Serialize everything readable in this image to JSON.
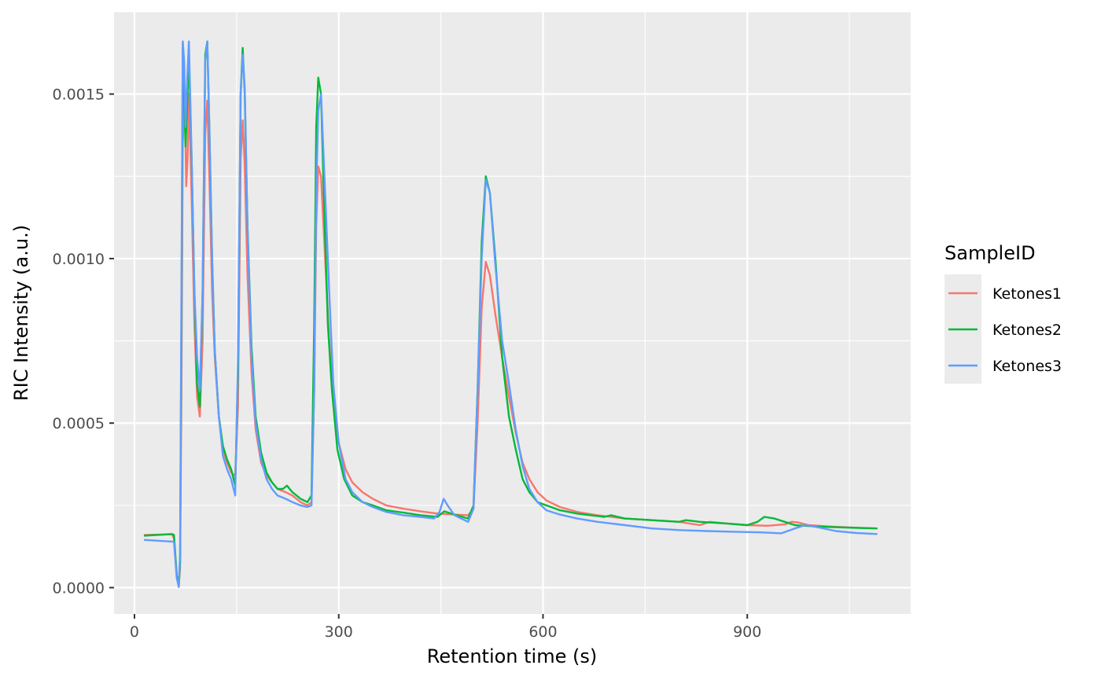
{
  "chart_data": {
    "type": "line",
    "title": "",
    "xlabel": "Retention time (s)",
    "ylabel": "RIC Intensity (a.u.)",
    "xlim": [
      -30,
      1140
    ],
    "ylim": [
      -8e-05,
      0.00175
    ],
    "x_ticks": [
      0,
      300,
      600,
      900
    ],
    "x_tick_labels": [
      "0",
      "300",
      "600",
      "900"
    ],
    "y_ticks": [
      0.0,
      0.0005,
      0.001,
      0.0015
    ],
    "y_tick_labels": [
      "0.0000",
      "0.0005",
      "0.0010",
      "0.0015"
    ],
    "grid": true,
    "legend": {
      "title": "SampleID",
      "position": "right"
    },
    "series": [
      {
        "name": "Ketones1",
        "color": "#F8766D",
        "points": [
          [
            15,
            0.00016
          ],
          [
            55,
            0.000162
          ],
          [
            58,
            0.00015
          ],
          [
            62,
            4e-05
          ],
          [
            65,
            5e-06
          ],
          [
            67,
            6e-05
          ],
          [
            69,
            0.0006
          ],
          [
            71,
            0.00135
          ],
          [
            74,
            0.0015
          ],
          [
            76,
            0.00122
          ],
          [
            78,
            0.0013
          ],
          [
            80,
            0.0015
          ],
          [
            84,
            0.00118
          ],
          [
            88,
            0.0008
          ],
          [
            92,
            0.00058
          ],
          [
            96,
            0.00052
          ],
          [
            100,
            0.00075
          ],
          [
            104,
            0.00138
          ],
          [
            107,
            0.00148
          ],
          [
            110,
            0.00125
          ],
          [
            114,
            0.0009
          ],
          [
            118,
            0.0007
          ],
          [
            124,
            0.00052
          ],
          [
            130,
            0.00042
          ],
          [
            136,
            0.00038
          ],
          [
            142,
            0.00035
          ],
          [
            148,
            0.00034
          ],
          [
            152,
            0.00055
          ],
          [
            156,
            0.0013
          ],
          [
            159,
            0.00142
          ],
          [
            162,
            0.00128
          ],
          [
            166,
            0.00095
          ],
          [
            172,
            0.00065
          ],
          [
            178,
            0.00048
          ],
          [
            186,
            0.00038
          ],
          [
            194,
            0.00034
          ],
          [
            202,
            0.00032
          ],
          [
            210,
            0.0003
          ],
          [
            222,
            0.00029
          ],
          [
            232,
            0.00028
          ],
          [
            244,
            0.00026
          ],
          [
            254,
            0.00025
          ],
          [
            260,
            0.00026
          ],
          [
            264,
            0.0006
          ],
          [
            267,
            0.0011
          ],
          [
            270,
            0.00128
          ],
          [
            274,
            0.00125
          ],
          [
            280,
            0.001
          ],
          [
            286,
            0.00075
          ],
          [
            292,
            0.00057
          ],
          [
            300,
            0.00044
          ],
          [
            310,
            0.00036
          ],
          [
            320,
            0.00032
          ],
          [
            335,
            0.00029
          ],
          [
            350,
            0.00027
          ],
          [
            370,
            0.00025
          ],
          [
            395,
            0.00024
          ],
          [
            420,
            0.000232
          ],
          [
            445,
            0.000225
          ],
          [
            470,
            0.000222
          ],
          [
            490,
            0.00022
          ],
          [
            498,
            0.00024
          ],
          [
            504,
            0.0005
          ],
          [
            510,
            0.00085
          ],
          [
            516,
            0.00099
          ],
          [
            522,
            0.00095
          ],
          [
            530,
            0.00083
          ],
          [
            540,
            0.0007
          ],
          [
            550,
            0.00058
          ],
          [
            560,
            0.00047
          ],
          [
            570,
            0.00038
          ],
          [
            580,
            0.00033
          ],
          [
            592,
            0.00029
          ],
          [
            605,
            0.000265
          ],
          [
            625,
            0.000245
          ],
          [
            650,
            0.00023
          ],
          [
            680,
            0.00022
          ],
          [
            720,
            0.00021
          ],
          [
            760,
            0.000205
          ],
          [
            800,
            0.0002
          ],
          [
            830,
            0.00019
          ],
          [
            845,
            0.0002
          ],
          [
            870,
            0.000195
          ],
          [
            900,
            0.00019
          ],
          [
            930,
            0.000188
          ],
          [
            955,
            0.000192
          ],
          [
            965,
            0.0002
          ],
          [
            975,
            0.000198
          ],
          [
            990,
            0.00019
          ],
          [
            1020,
            0.000186
          ],
          [
            1060,
            0.000182
          ],
          [
            1090,
            0.00018
          ]
        ]
      },
      {
        "name": "Ketones2",
        "color": "#00BA38",
        "points": [
          [
            15,
            0.000158
          ],
          [
            55,
            0.000163
          ],
          [
            58,
            0.00016
          ],
          [
            62,
            4e-05
          ],
          [
            65,
            3e-06
          ],
          [
            67,
            8e-05
          ],
          [
            69,
            0.0008
          ],
          [
            71,
            0.00164
          ],
          [
            73,
            0.0015
          ],
          [
            75,
            0.00134
          ],
          [
            77,
            0.00144
          ],
          [
            80,
            0.00162
          ],
          [
            84,
            0.0013
          ],
          [
            88,
            0.0009
          ],
          [
            92,
            0.00062
          ],
          [
            96,
            0.00055
          ],
          [
            100,
            0.0009
          ],
          [
            104,
            0.00162
          ],
          [
            107,
            0.00166
          ],
          [
            110,
            0.0014
          ],
          [
            114,
            0.001
          ],
          [
            118,
            0.00072
          ],
          [
            124,
            0.00052
          ],
          [
            130,
            0.00043
          ],
          [
            136,
            0.00039
          ],
          [
            142,
            0.00036
          ],
          [
            148,
            0.00031
          ],
          [
            152,
            0.00065
          ],
          [
            156,
            0.0015
          ],
          [
            159,
            0.00164
          ],
          [
            162,
            0.0015
          ],
          [
            166,
            0.0011
          ],
          [
            172,
            0.00073
          ],
          [
            178,
            0.00052
          ],
          [
            186,
            0.00041
          ],
          [
            194,
            0.00035
          ],
          [
            202,
            0.00032
          ],
          [
            210,
            0.0003
          ],
          [
            218,
            0.0003
          ],
          [
            224,
            0.00031
          ],
          [
            232,
            0.00029
          ],
          [
            244,
            0.00027
          ],
          [
            254,
            0.00026
          ],
          [
            260,
            0.00028
          ],
          [
            264,
            0.0008
          ],
          [
            267,
            0.0014
          ],
          [
            270,
            0.00155
          ],
          [
            274,
            0.0015
          ],
          [
            278,
            0.0012
          ],
          [
            284,
            0.0008
          ],
          [
            290,
            0.0006
          ],
          [
            298,
            0.00042
          ],
          [
            308,
            0.00033
          ],
          [
            320,
            0.00028
          ],
          [
            335,
            0.00026
          ],
          [
            350,
            0.00025
          ],
          [
            370,
            0.000235
          ],
          [
            395,
            0.000228
          ],
          [
            420,
            0.00022
          ],
          [
            445,
            0.000215
          ],
          [
            455,
            0.000232
          ],
          [
            470,
            0.000222
          ],
          [
            490,
            0.00021
          ],
          [
            498,
            0.00025
          ],
          [
            504,
            0.0006
          ],
          [
            510,
            0.00105
          ],
          [
            516,
            0.00125
          ],
          [
            522,
            0.0012
          ],
          [
            530,
            0.001
          ],
          [
            540,
            0.0007
          ],
          [
            550,
            0.00052
          ],
          [
            560,
            0.00042
          ],
          [
            570,
            0.00033
          ],
          [
            580,
            0.00029
          ],
          [
            592,
            0.00026
          ],
          [
            605,
            0.00025
          ],
          [
            625,
            0.000235
          ],
          [
            650,
            0.000225
          ],
          [
            670,
            0.00022
          ],
          [
            690,
            0.000215
          ],
          [
            700,
            0.00022
          ],
          [
            720,
            0.00021
          ],
          [
            760,
            0.000205
          ],
          [
            800,
            0.0002
          ],
          [
            810,
            0.000205
          ],
          [
            830,
            0.0002
          ],
          [
            870,
            0.000195
          ],
          [
            900,
            0.00019
          ],
          [
            915,
            0.0002
          ],
          [
            925,
            0.000215
          ],
          [
            940,
            0.00021
          ],
          [
            955,
            0.0002
          ],
          [
            970,
            0.00019
          ],
          [
            1000,
            0.000186
          ],
          [
            1040,
            0.000183
          ],
          [
            1090,
            0.00018
          ]
        ]
      },
      {
        "name": "Ketones3",
        "color": "#619CFF",
        "points": [
          [
            15,
            0.000145
          ],
          [
            55,
            0.00014
          ],
          [
            58,
            0.00014
          ],
          [
            62,
            3e-05
          ],
          [
            65,
            2e-06
          ],
          [
            67,
            0.0001
          ],
          [
            69,
            0.0009
          ],
          [
            71,
            0.00166
          ],
          [
            73,
            0.0016
          ],
          [
            75,
            0.0014
          ],
          [
            77,
            0.00152
          ],
          [
            80,
            0.00166
          ],
          [
            84,
            0.0013
          ],
          [
            88,
            0.0009
          ],
          [
            92,
            0.0007
          ],
          [
            96,
            0.0006
          ],
          [
            100,
            0.0009
          ],
          [
            104,
            0.0016
          ],
          [
            107,
            0.00166
          ],
          [
            110,
            0.0014
          ],
          [
            114,
            0.001
          ],
          [
            118,
            0.00072
          ],
          [
            124,
            0.00052
          ],
          [
            130,
            0.0004
          ],
          [
            136,
            0.00036
          ],
          [
            142,
            0.00033
          ],
          [
            148,
            0.00028
          ],
          [
            152,
            0.0007
          ],
          [
            156,
            0.0015
          ],
          [
            159,
            0.00162
          ],
          [
            162,
            0.00152
          ],
          [
            166,
            0.0011
          ],
          [
            172,
            0.0007
          ],
          [
            178,
            0.0005
          ],
          [
            186,
            0.00039
          ],
          [
            194,
            0.00033
          ],
          [
            202,
            0.0003
          ],
          [
            210,
            0.00028
          ],
          [
            222,
            0.00027
          ],
          [
            232,
            0.00026
          ],
          [
            244,
            0.00025
          ],
          [
            254,
            0.000245
          ],
          [
            260,
            0.00025
          ],
          [
            264,
            0.0006
          ],
          [
            267,
            0.0012
          ],
          [
            270,
            0.00145
          ],
          [
            274,
            0.0015
          ],
          [
            280,
            0.0012
          ],
          [
            286,
            0.0009
          ],
          [
            292,
            0.00062
          ],
          [
            300,
            0.00044
          ],
          [
            310,
            0.00033
          ],
          [
            320,
            0.00029
          ],
          [
            335,
            0.00026
          ],
          [
            350,
            0.000245
          ],
          [
            370,
            0.00023
          ],
          [
            395,
            0.00022
          ],
          [
            420,
            0.000215
          ],
          [
            440,
            0.00021
          ],
          [
            448,
            0.00023
          ],
          [
            454,
            0.00027
          ],
          [
            460,
            0.00025
          ],
          [
            470,
            0.00022
          ],
          [
            490,
            0.0002
          ],
          [
            498,
            0.00024
          ],
          [
            504,
            0.0006
          ],
          [
            510,
            0.001
          ],
          [
            516,
            0.00124
          ],
          [
            522,
            0.0012
          ],
          [
            530,
            0.00098
          ],
          [
            540,
            0.00075
          ],
          [
            550,
            0.00062
          ],
          [
            560,
            0.00048
          ],
          [
            570,
            0.00037
          ],
          [
            580,
            0.0003
          ],
          [
            592,
            0.00026
          ],
          [
            605,
            0.000235
          ],
          [
            625,
            0.000222
          ],
          [
            650,
            0.00021
          ],
          [
            680,
            0.0002
          ],
          [
            720,
            0.00019
          ],
          [
            760,
            0.00018
          ],
          [
            800,
            0.000175
          ],
          [
            840,
            0.000172
          ],
          [
            880,
            0.00017
          ],
          [
            920,
            0.000168
          ],
          [
            950,
            0.000165
          ],
          [
            970,
            0.00018
          ],
          [
            985,
            0.00019
          ],
          [
            1000,
            0.000185
          ],
          [
            1030,
            0.000172
          ],
          [
            1060,
            0.000166
          ],
          [
            1090,
            0.000163
          ]
        ]
      }
    ]
  }
}
